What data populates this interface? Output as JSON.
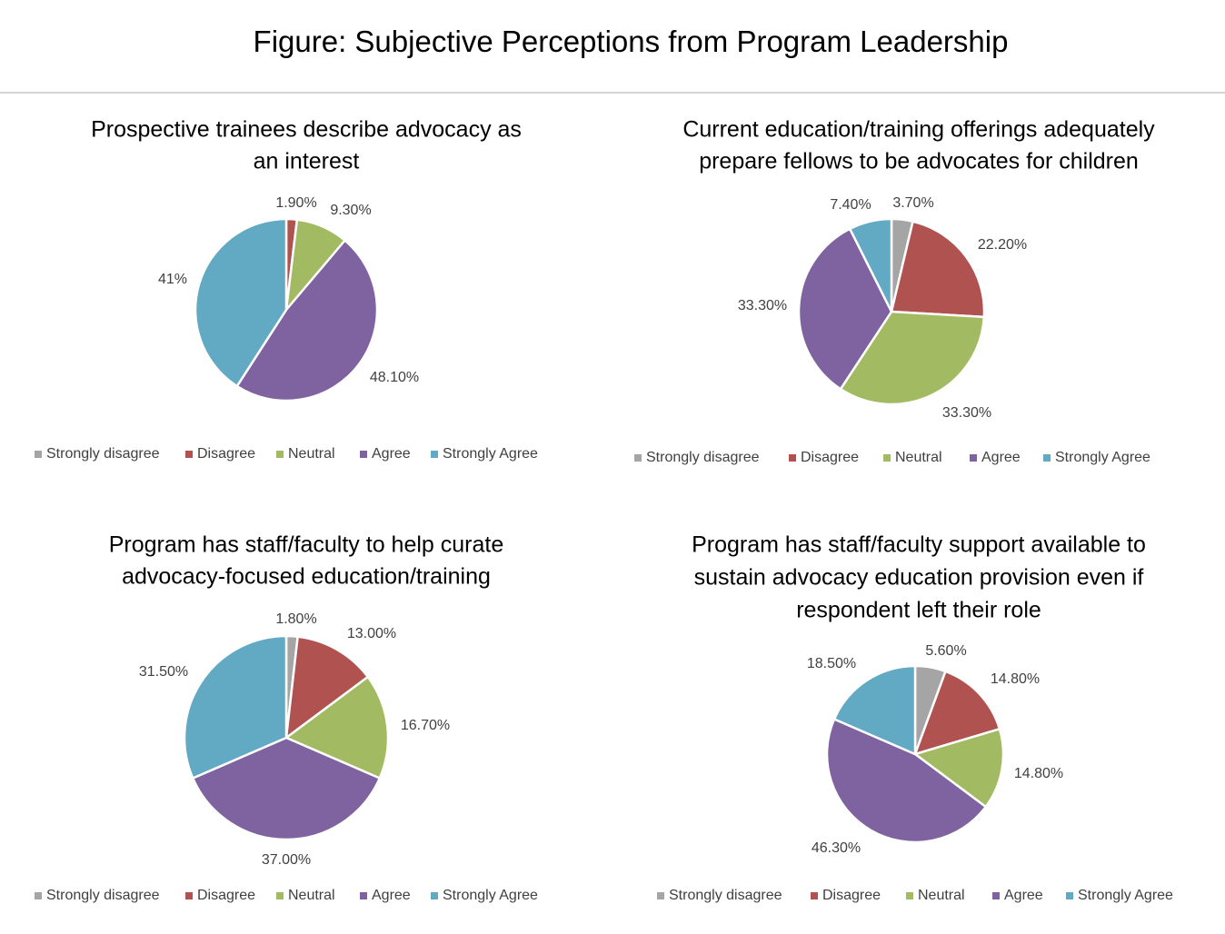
{
  "figure_title": "Figure: Subjective Perceptions from Program Leadership",
  "colors": {
    "Strongly disagree": "#a5a5a5",
    "Disagree": "#b0524f",
    "Neutral": "#a2bb62",
    "Agree": "#7e63a0",
    "Strongly Agree": "#62a9c4"
  },
  "chart_data": [
    {
      "type": "pie",
      "title_lines": [
        "Prospective trainees describe advocacy as",
        "an interest"
      ],
      "categories": [
        "Strongly disagree",
        "Disagree",
        "Neutral",
        "Agree",
        "Strongly Agree"
      ],
      "values": [
        0,
        1.9,
        9.3,
        48.1,
        41
      ],
      "value_labels": [
        "",
        "1.90%",
        "9.30%",
        "48.10%",
        "41%"
      ],
      "legend": [
        "Strongly disagree",
        "Disagree",
        "Neutral",
        "Agree",
        "Strongly Agree"
      ],
      "legend_position": "bottom"
    },
    {
      "type": "pie",
      "title_lines": [
        "Current education/training offerings adequately",
        "prepare fellows to be advocates for children"
      ],
      "categories": [
        "Strongly disagree",
        "Disagree",
        "Neutral",
        "Agree",
        "Strongly Agree"
      ],
      "values": [
        3.7,
        22.2,
        33.3,
        33.3,
        7.4
      ],
      "value_labels": [
        "3.70%",
        "22.20%",
        "33.30%",
        "33.30%",
        "7.40%"
      ],
      "legend": [
        "Strongly disagree",
        "Disagree",
        "Neutral",
        "Agree",
        "Strongly Agree"
      ],
      "legend_position": "bottom"
    },
    {
      "type": "pie",
      "title_lines": [
        "Program has staff/faculty to help curate",
        "advocacy-focused education/training"
      ],
      "categories": [
        "Strongly disagree",
        "Disagree",
        "Neutral",
        "Agree",
        "Strongly Agree"
      ],
      "values": [
        1.8,
        13.0,
        16.7,
        37.0,
        31.5
      ],
      "value_labels": [
        "1.80%",
        "13.00%",
        "16.70%",
        "37.00%",
        "31.50%"
      ],
      "legend": [
        "Strongly disagree",
        "Disagree",
        "Neutral",
        "Agree",
        "Strongly Agree"
      ],
      "legend_position": "bottom"
    },
    {
      "type": "pie",
      "title_lines": [
        "Program has staff/faculty support available to",
        "sustain advocacy education provision even if",
        "respondent left their role"
      ],
      "categories": [
        "Strongly disagree",
        "Disagree",
        "Neutral",
        "Agree",
        "Strongly Agree"
      ],
      "values": [
        5.6,
        14.8,
        14.8,
        46.3,
        18.5
      ],
      "value_labels": [
        "5.60%",
        "14.80%",
        "14.80%",
        "46.30%",
        "18.50%"
      ],
      "legend": [
        "Strongly disagree",
        "Disagree",
        "Neutral",
        "Agree",
        "Strongly Agree"
      ],
      "legend_position": "bottom"
    }
  ]
}
